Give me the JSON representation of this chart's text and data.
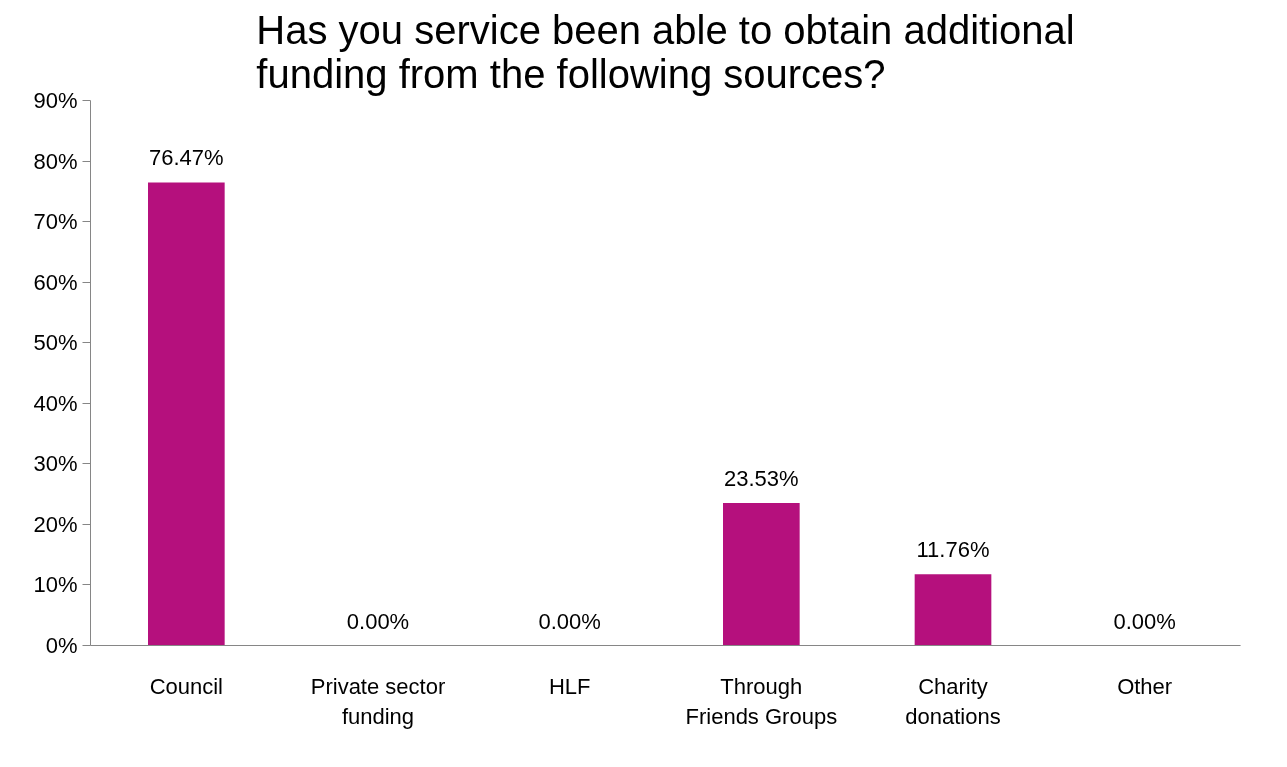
{
  "chart_data": {
    "type": "bar",
    "title": "Has you service been able to obtain additional funding from the following sources?",
    "categories": [
      "Council",
      "Private sector funding",
      "HLF",
      "Through Friends Groups",
      "Charity donations",
      "Other"
    ],
    "values": [
      76.47,
      0,
      0,
      23.53,
      11.76,
      0
    ],
    "value_labels": [
      "76.47%",
      "0.00%",
      "0.00%",
      "23.53%",
      "11.76%",
      "0.00%"
    ],
    "color": "#b5107d",
    "ylim": [
      0,
      90
    ],
    "yticks": [
      {
        "value": 0,
        "label": "0%"
      },
      {
        "value": 10,
        "label": "10%"
      },
      {
        "value": 20,
        "label": "20%"
      },
      {
        "value": 30,
        "label": "30%"
      },
      {
        "value": 40,
        "label": "40%"
      },
      {
        "value": 50,
        "label": "50%"
      },
      {
        "value": 60,
        "label": "60%"
      },
      {
        "value": 70,
        "label": "70%"
      },
      {
        "value": 80,
        "label": "80%"
      },
      {
        "value": 90,
        "label": "90%"
      }
    ],
    "grid": false
  }
}
